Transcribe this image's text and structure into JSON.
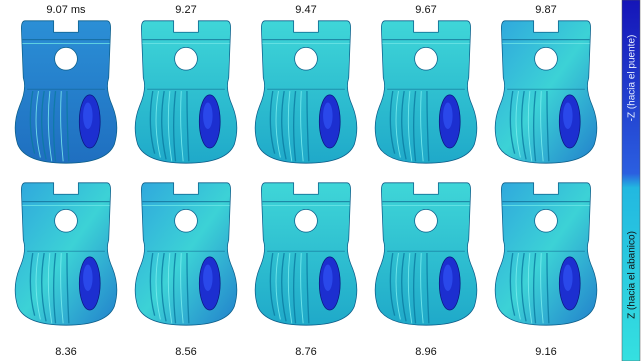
{
  "top_row": {
    "labels": [
      "9.07 ms",
      "9.27",
      "9.47",
      "9.67",
      "9.87"
    ]
  },
  "bottom_row": {
    "labels": [
      "8.36",
      "8.56",
      "8.76",
      "8.96",
      "9.16"
    ]
  },
  "colorbar": {
    "top_label": "-Z (hacia el puente)",
    "bottom_label": "Z (hacia el abanico)"
  }
}
